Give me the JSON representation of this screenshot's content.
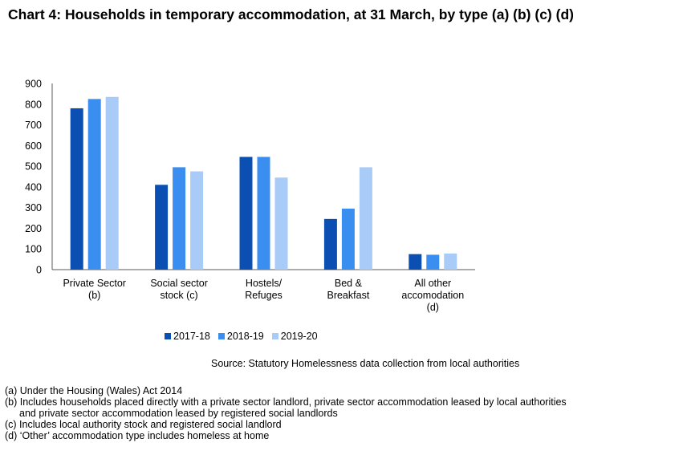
{
  "title": "Chart 4: Households in temporary accommodation, at 31 March, by type (a) (b) (c) (d)",
  "source": "Source: Statutory Homelessness data collection from local authorities",
  "notes": [
    "(a) Under the Housing (Wales) Act 2014",
    "(b) Includes households placed directly with a private sector landlord, private sector accommodation leased by local authorities",
    "and private sector accommodation leased by registered social landlords",
    "(c) Includes local authority stock and registered social landlord",
    "(d) ‘Other’ accommodation type includes homeless at home"
  ],
  "chart_data": {
    "type": "bar",
    "categories": [
      [
        "Private Sector",
        "(b)"
      ],
      [
        "Social sector",
        "stock (c)"
      ],
      [
        "Hostels/",
        "Refuges"
      ],
      [
        "Bed &",
        "Breakfast"
      ],
      [
        "All other",
        "accomodation",
        "(d)"
      ]
    ],
    "series": [
      {
        "name": "2017-18",
        "color": "#0b4fb3",
        "values": [
          780,
          410,
          545,
          245,
          75
        ]
      },
      {
        "name": "2018-19",
        "color": "#3a8ef0",
        "values": [
          825,
          495,
          545,
          295,
          72
        ]
      },
      {
        "name": "2019-20",
        "color": "#a9cbf7",
        "values": [
          835,
          475,
          445,
          495,
          78
        ]
      }
    ],
    "ylim": [
      0,
      900
    ],
    "yticks": [
      "0",
      "100",
      "200",
      "300",
      "400",
      "500",
      "600",
      "700",
      "800",
      "900"
    ],
    "grid": false,
    "legend_position": "bottom"
  }
}
